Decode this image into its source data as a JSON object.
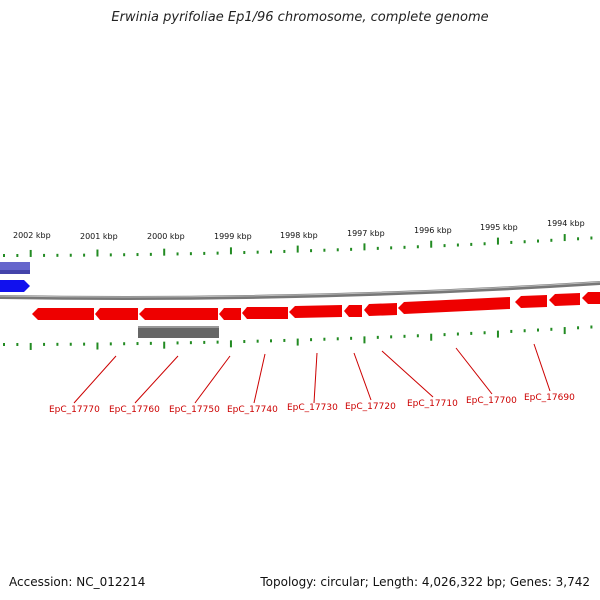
{
  "title": "Erwinia pyrifoliae Ep1/96 chromosome, complete genome",
  "footer": {
    "accession": "Accession: NC_012214",
    "summary": "Topology: circular; Length: 4,026,322 bp; Genes: 3,742"
  },
  "colors": {
    "forward_gene": "#ee0000",
    "reverse_gene_dark": "#1111ee",
    "reverse_gene_light": "#6666cc",
    "backbone": "#888888",
    "tick": "#228b22",
    "label": "#cc0000",
    "grey_feature": "#666666"
  },
  "kbp_labels": [
    "2002 kbp",
    "2001 kbp",
    "2000 kbp",
    "1999 kbp",
    "1998 kbp",
    "1997 kbp",
    "1996 kbp",
    "1995 kbp",
    "1994 kbp"
  ],
  "gene_labels": [
    "EpC_17770",
    "EpC_17760",
    "EpC_17750",
    "EpC_17740",
    "EpC_17730",
    "EpC_17720",
    "EpC_17710",
    "EpC_17700",
    "EpC_17690"
  ]
}
